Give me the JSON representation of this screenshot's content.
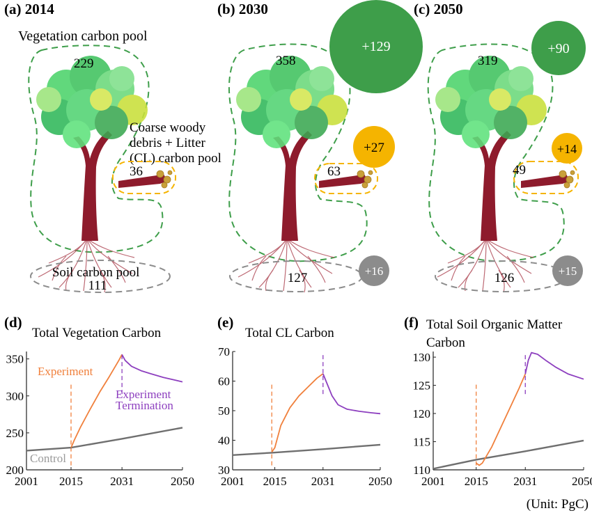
{
  "colors": {
    "vegetation": "#3e9e4a",
    "cl": "#f5b400",
    "soil": "#8c8c8c",
    "trunk": "#8e1b2c",
    "foliage": "#4cd36b",
    "foliage_light": "#c9e03a",
    "experiment": "#f0803c",
    "termination": "#8d3fbf",
    "control": "#6f6f6f",
    "control_label": "#9a9a9a"
  },
  "icons": [
    "tree-illustration",
    "coarse-woody-debris-log-illustration",
    "root-system-illustration"
  ],
  "pools": {
    "vegetation_label": "Vegetation carbon pool",
    "cl_label_lines": [
      "Coarse woody",
      "debris + Litter",
      "(CL) carbon pool"
    ],
    "soil_label_lines": [
      "Soil carbon pool",
      "111"
    ]
  },
  "panels": [
    {
      "letter": "(a)",
      "year": "2014",
      "veg": "229",
      "cl": "36",
      "soil": "111",
      "d_veg": "",
      "d_cl": "",
      "d_soil": ""
    },
    {
      "letter": "(b)",
      "year": "2030",
      "veg": "358",
      "cl": "63",
      "soil": "127",
      "d_veg": "+129",
      "d_cl": "+27",
      "d_soil": "+16"
    },
    {
      "letter": "(c)",
      "year": "2050",
      "veg": "319",
      "cl": "49",
      "soil": "126",
      "d_veg": "+90",
      "d_cl": "+14",
      "d_soil": "+15"
    }
  ],
  "unit_note": "(Unit: PgC)",
  "chart_data": [
    {
      "panel": "(d)",
      "type": "line",
      "title": "Total Vegetation Carbon",
      "xlabel": "",
      "ylabel": "",
      "xlim": [
        2001,
        2050
      ],
      "ylim": [
        200,
        360
      ],
      "xticks": [
        2001,
        2015,
        2031,
        2050
      ],
      "yticks": [
        200,
        250,
        300,
        350
      ],
      "grid": false,
      "annotations": [
        "Experiment",
        "Experiment",
        "Termination",
        "Control"
      ],
      "markers": [
        2015,
        2031
      ],
      "series": [
        {
          "name": "Control",
          "x": [
            2001,
            2015,
            2031,
            2050
          ],
          "y": [
            226,
            230,
            242,
            257
          ]
        },
        {
          "name": "Experiment",
          "x": [
            2015,
            2016,
            2018,
            2021,
            2024,
            2027,
            2030,
            2031
          ],
          "y": [
            230,
            240,
            258,
            282,
            305,
            326,
            348,
            356
          ]
        },
        {
          "name": "Termination",
          "x": [
            2031,
            2032,
            2034,
            2037,
            2040,
            2044,
            2047,
            2050
          ],
          "y": [
            356,
            348,
            340,
            334,
            330,
            325,
            322,
            319
          ]
        }
      ]
    },
    {
      "panel": "(e)",
      "type": "line",
      "title": "Total CL Carbon",
      "xlabel": "",
      "ylabel": "",
      "xlim": [
        2001,
        2050
      ],
      "ylim": [
        30,
        70
      ],
      "xticks": [
        2001,
        2015,
        2031,
        2050
      ],
      "yticks": [
        30,
        40,
        50,
        60,
        70
      ],
      "grid": false,
      "markers": [
        2014,
        2031
      ],
      "series": [
        {
          "name": "Control",
          "x": [
            2001,
            2014,
            2031,
            2050
          ],
          "y": [
            35,
            35.8,
            37,
            38.5
          ]
        },
        {
          "name": "Experiment",
          "x": [
            2014,
            2015,
            2017,
            2020,
            2023,
            2026,
            2029,
            2031
          ],
          "y": [
            36,
            37.5,
            45,
            51,
            55,
            58,
            61,
            62.5
          ]
        },
        {
          "name": "Termination",
          "x": [
            2031,
            2032,
            2034,
            2036,
            2039,
            2043,
            2047,
            2050
          ],
          "y": [
            62.5,
            60,
            55,
            52,
            50.5,
            49.8,
            49.3,
            49
          ]
        }
      ]
    },
    {
      "panel": "(f)",
      "type": "line",
      "title_lines": [
        "Total Soil Organic Matter",
        "Carbon"
      ],
      "xlabel": "",
      "ylabel": "",
      "xlim": [
        2001,
        2050
      ],
      "ylim": [
        110,
        131
      ],
      "xticks": [
        2001,
        2015,
        2031,
        2050
      ],
      "yticks": [
        110,
        115,
        120,
        125,
        130
      ],
      "grid": false,
      "markers": [
        2015,
        2031
      ],
      "series": [
        {
          "name": "Control",
          "x": [
            2001,
            2015,
            2031,
            2050
          ],
          "y": [
            110.2,
            111.8,
            113.3,
            115.2
          ]
        },
        {
          "name": "Experiment",
          "x": [
            2015,
            2016,
            2017,
            2020,
            2023,
            2026,
            2029,
            2031
          ],
          "y": [
            111.2,
            110.8,
            111.2,
            114,
            117.5,
            121,
            124.5,
            127
          ]
        },
        {
          "name": "Termination",
          "x": [
            2031,
            2032,
            2033,
            2035,
            2038,
            2041,
            2045,
            2050
          ],
          "y": [
            127,
            129.5,
            130.8,
            130.5,
            129.3,
            128.2,
            127,
            126.1
          ]
        }
      ]
    }
  ]
}
